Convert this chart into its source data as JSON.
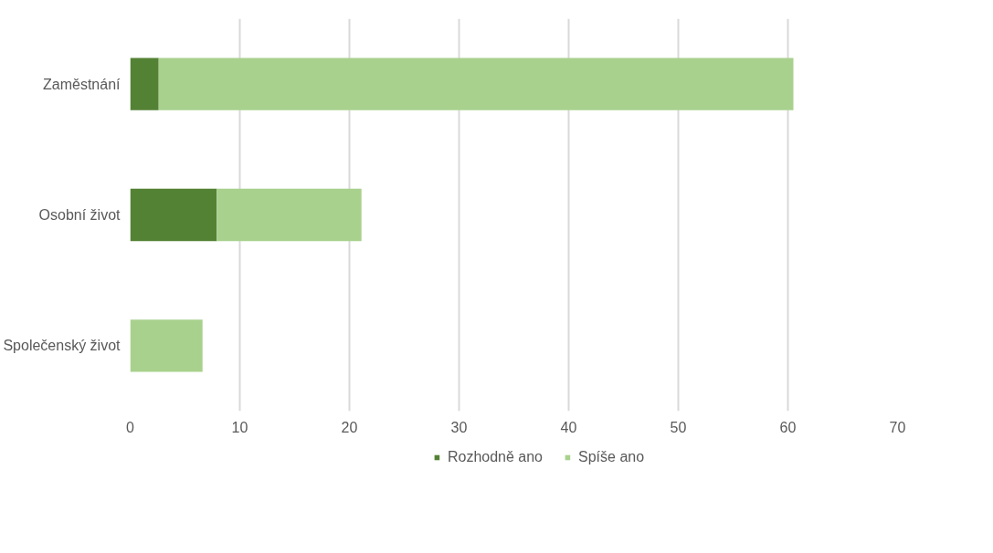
{
  "chart_data": {
    "type": "bar",
    "orientation": "horizontal",
    "stacked": true,
    "categories": [
      "Zaměstnání",
      "Osobní život",
      "Společenský život"
    ],
    "series": [
      {
        "name": "Rozhodně ano",
        "color": "#548235",
        "values": [
          2.6,
          7.9,
          0
        ]
      },
      {
        "name": "Spíše ano",
        "color": "#a9d18e",
        "values": [
          57.9,
          13.2,
          6.6
        ]
      }
    ],
    "xlim": [
      0,
      70
    ],
    "xticks": [
      0,
      10,
      20,
      30,
      40,
      50,
      60,
      70
    ],
    "grid": "x",
    "legend": "bottom"
  }
}
